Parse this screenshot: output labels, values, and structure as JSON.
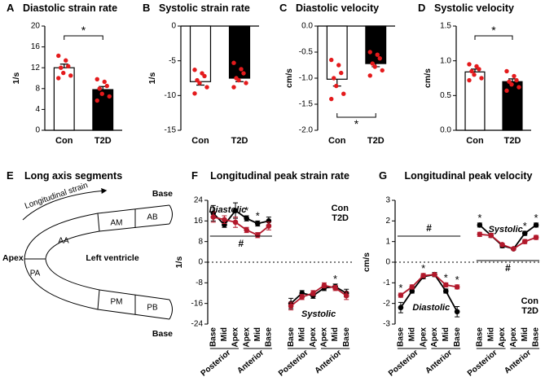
{
  "chart_data": [
    {
      "type": "bar",
      "panel": "A",
      "title": "Diastolic strain rate",
      "ylabel": "1/s",
      "categories": [
        "Con",
        "T2D"
      ],
      "values": [
        12.0,
        7.8
      ],
      "errors": [
        0.7,
        0.6
      ],
      "points": [
        [
          14.3,
          13.4,
          12.3,
          12.0,
          11.0,
          10.5,
          10.0
        ],
        [
          9.8,
          9.3,
          8.5,
          8.0,
          7.0,
          6.5,
          5.7
        ]
      ],
      "colors": [
        "#ffffff",
        "#000000"
      ],
      "point_color": "#e41a1c",
      "ylim": [
        0,
        20
      ],
      "yticks": [
        0,
        4,
        8,
        12,
        16,
        20
      ],
      "significance": "*",
      "significance_side": "top"
    },
    {
      "type": "bar",
      "panel": "B",
      "title": "Systolic strain rate",
      "ylabel": "1/s",
      "categories": [
        "Con",
        "T2D"
      ],
      "values": [
        -8.0,
        -7.5
      ],
      "errors": [
        0.5,
        0.5
      ],
      "points": [
        [
          -6.3,
          -6.8,
          -7.2,
          -7.8,
          -8.2,
          -8.8,
          -9.7
        ],
        [
          -5.3,
          -6.2,
          -6.8,
          -7.5,
          -7.8,
          -8.2,
          -8.8
        ]
      ],
      "colors": [
        "#ffffff",
        "#000000"
      ],
      "point_color": "#e41a1c",
      "ylim": [
        -15,
        0
      ],
      "yticks": [
        0,
        -5,
        -10,
        -15
      ]
    },
    {
      "type": "bar",
      "panel": "C",
      "title": "Diastolic velocity",
      "ylabel": "cm/s",
      "categories": [
        "Con",
        "T2D"
      ],
      "values": [
        -1.02,
        -0.72
      ],
      "errors": [
        0.13,
        0.06
      ],
      "points": [
        [
          -0.65,
          -0.75,
          -0.9,
          -1.0,
          -1.15,
          -1.3,
          -1.4
        ],
        [
          -0.5,
          -0.55,
          -0.62,
          -0.72,
          -0.78,
          -0.85,
          -0.95
        ]
      ],
      "colors": [
        "#ffffff",
        "#000000"
      ],
      "point_color": "#e41a1c",
      "ylim": [
        -2,
        0
      ],
      "yticks": [
        {
          "value": 0,
          "label": "0.0"
        },
        -0.5,
        {
          "value": -1,
          "label": "-1.0"
        },
        -1.5,
        {
          "value": -2,
          "label": "-2.0"
        }
      ],
      "significance": "*",
      "significance_side": "bottom"
    },
    {
      "type": "bar",
      "panel": "D",
      "title": "Systolic velocity",
      "ylabel": "cm/s",
      "categories": [
        "Con",
        "T2D"
      ],
      "values": [
        0.84,
        0.7
      ],
      "errors": [
        0.04,
        0.04
      ],
      "points": [
        [
          0.95,
          0.92,
          0.88,
          0.85,
          0.8,
          0.75,
          0.72
        ],
        [
          0.85,
          0.78,
          0.72,
          0.7,
          0.66,
          0.62,
          0.57
        ]
      ],
      "colors": [
        "#ffffff",
        "#000000"
      ],
      "point_color": "#e41a1c",
      "ylim": [
        0,
        1.5
      ],
      "yticks": [
        {
          "value": 0,
          "label": "0.0"
        },
        0.5,
        {
          "value": 1,
          "label": "1.0"
        },
        1.5
      ],
      "significance": "*",
      "significance_side": "top"
    },
    {
      "type": "line",
      "panel": "F",
      "title": "Longitudinal peak strain rate",
      "ylabel": "1/s",
      "categories": [
        "Base",
        "Mid",
        "Apex",
        "Apex",
        "Mid",
        "Base",
        null,
        "Base",
        "Mid",
        "Apex",
        "Apex",
        "Mid",
        "Base"
      ],
      "groups": [
        "Posterior",
        "Anterior",
        "Posterior",
        "Anterior"
      ],
      "series": [
        {
          "name": "Con",
          "color": "#000000",
          "values": [
            19,
            14.5,
            20,
            17,
            15,
            16,
            null,
            -16,
            -12,
            -13,
            -10,
            -9.5,
            -12
          ],
          "errors": [
            3,
            1,
            3,
            1,
            1,
            1.5,
            null,
            2,
            1,
            1,
            1,
            1,
            1.5
          ]
        },
        {
          "name": "T2D",
          "color": "#b2182b",
          "values": [
            17.5,
            16.5,
            15.5,
            12.5,
            10.5,
            14,
            null,
            -17,
            -13.5,
            -12,
            -9,
            -10,
            -13
          ],
          "errors": [
            2,
            1.5,
            2,
            1,
            1,
            1.5,
            null,
            1.5,
            1,
            1,
            1,
            1,
            1.5
          ]
        }
      ],
      "significance": [
        null,
        null,
        null,
        "*",
        "*",
        null,
        null,
        null,
        null,
        null,
        null,
        "*",
        null
      ],
      "annotations": [
        "#"
      ],
      "phase_labels": [
        "Diastolic",
        "Systolic"
      ],
      "ylim": [
        -24,
        24
      ],
      "yticks": [
        24,
        16,
        8,
        0,
        -8,
        -16,
        -24
      ],
      "legend": "top-right"
    },
    {
      "type": "line",
      "panel": "G",
      "title": "Longitudinal peak velocity",
      "ylabel": "cm/s",
      "categories": [
        "Base",
        "Mid",
        "Apex",
        "Apex",
        "Mid",
        "Base",
        null,
        "Base",
        "Mid",
        "Apex",
        "Apex",
        "Mid",
        "Base"
      ],
      "groups": [
        "Posterior",
        "Anterior",
        "Posterior",
        "Anterior"
      ],
      "series": [
        {
          "name": "Con",
          "color": "#000000",
          "values": [
            -2.2,
            -1.4,
            -0.7,
            -0.6,
            -1.4,
            -2.4,
            null,
            1.8,
            1.3,
            0.8,
            0.65,
            1.4,
            1.8
          ],
          "errors": [
            0.25,
            0.1,
            0.1,
            0.1,
            0.1,
            0.25,
            null,
            0.1,
            0.1,
            0.1,
            0.05,
            0.1,
            0.1
          ]
        },
        {
          "name": "T2D",
          "color": "#b2182b",
          "values": [
            -1.6,
            -1.2,
            -0.65,
            -0.6,
            -1.1,
            -1.2,
            null,
            1.35,
            1.3,
            0.85,
            0.65,
            1.0,
            1.2
          ],
          "errors": [
            0.1,
            0.1,
            0.1,
            0.05,
            0.1,
            0.1,
            null,
            0.1,
            0.1,
            0.05,
            0.05,
            0.1,
            0.1
          ]
        }
      ],
      "significance": [
        "*",
        null,
        "*",
        null,
        "*",
        "*",
        null,
        "*",
        null,
        null,
        null,
        "*",
        "*"
      ],
      "annotations": [
        "#",
        "#"
      ],
      "phase_labels": [
        "Systolic",
        "Diastolic"
      ],
      "ylim": [
        -3,
        3
      ],
      "yticks": [
        3,
        2,
        1,
        0,
        -1,
        -2,
        -3
      ],
      "legend": "bottom-right"
    }
  ],
  "diagram": {
    "panel": "E",
    "title": "Long axis segments",
    "arrow_label": "Longitudinal strain",
    "base_top": "Base",
    "apex": "Apex",
    "chamber": "Left ventricle",
    "base_bottom": "Base",
    "segments": [
      "AB",
      "AM",
      "AA",
      "PA",
      "PM",
      "PB"
    ]
  }
}
